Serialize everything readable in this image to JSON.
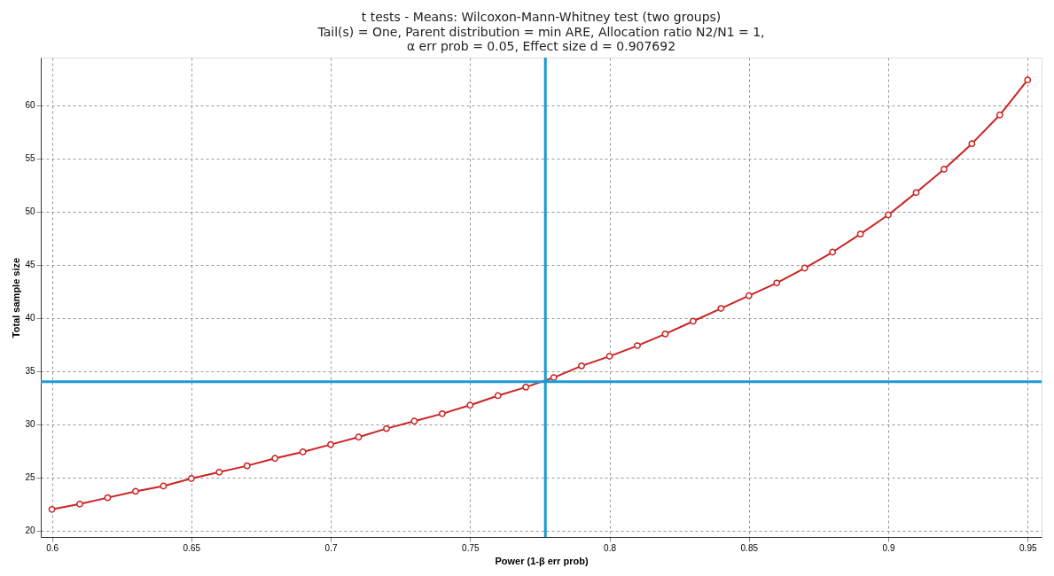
{
  "chart_data": {
    "type": "line",
    "title": "t tests - Means: Wilcoxon-Mann-Whitney test (two groups)",
    "subtitle": "Tail(s) = One, Parent distribution = min ARE, Allocation ratio N2/N1 = 1,\nα err prob = 0.05, Effect size d = 0.907692",
    "xlabel": "Power (1-β err prob)",
    "ylabel": "Total sample size",
    "x": [
      0.6,
      0.61,
      0.62,
      0.63,
      0.64,
      0.65,
      0.66,
      0.67,
      0.68,
      0.69,
      0.7,
      0.71,
      0.72,
      0.73,
      0.74,
      0.75,
      0.76,
      0.77,
      0.78,
      0.79,
      0.8,
      0.81,
      0.82,
      0.83,
      0.84,
      0.85,
      0.86,
      0.87,
      0.88,
      0.89,
      0.9,
      0.91,
      0.92,
      0.93,
      0.94,
      0.95
    ],
    "series": [
      {
        "color": "#cc2222",
        "values": [
          22.0,
          22.5,
          23.1,
          23.7,
          24.2,
          24.9,
          25.5,
          26.1,
          26.8,
          27.4,
          28.1,
          28.8,
          29.6,
          30.3,
          31.0,
          31.8,
          32.7,
          33.5,
          34.4,
          35.5,
          36.4,
          37.4,
          38.5,
          39.7,
          40.9,
          42.1,
          43.3,
          44.7,
          46.2,
          47.9,
          49.7,
          51.8,
          54.0,
          56.4,
          59.1,
          62.4
        ]
      }
    ],
    "xlim": [
      0.596,
      0.955
    ],
    "ylim": [
      19.4,
      64.5
    ],
    "xticks": [
      0.6,
      0.65,
      0.7,
      0.75,
      0.8,
      0.85,
      0.9,
      0.95
    ],
    "yticks": [
      20,
      25,
      30,
      35,
      40,
      45,
      50,
      55,
      60
    ],
    "ref_lines": [
      {
        "axis": "y",
        "value": 34,
        "color": "#1a9ad6",
        "line_style": "solid"
      },
      {
        "axis": "x",
        "value": 0.777,
        "color": "#1a9ad6",
        "line_style": "solid"
      }
    ],
    "grid": true,
    "marker": "circle",
    "line_style": "solid"
  }
}
